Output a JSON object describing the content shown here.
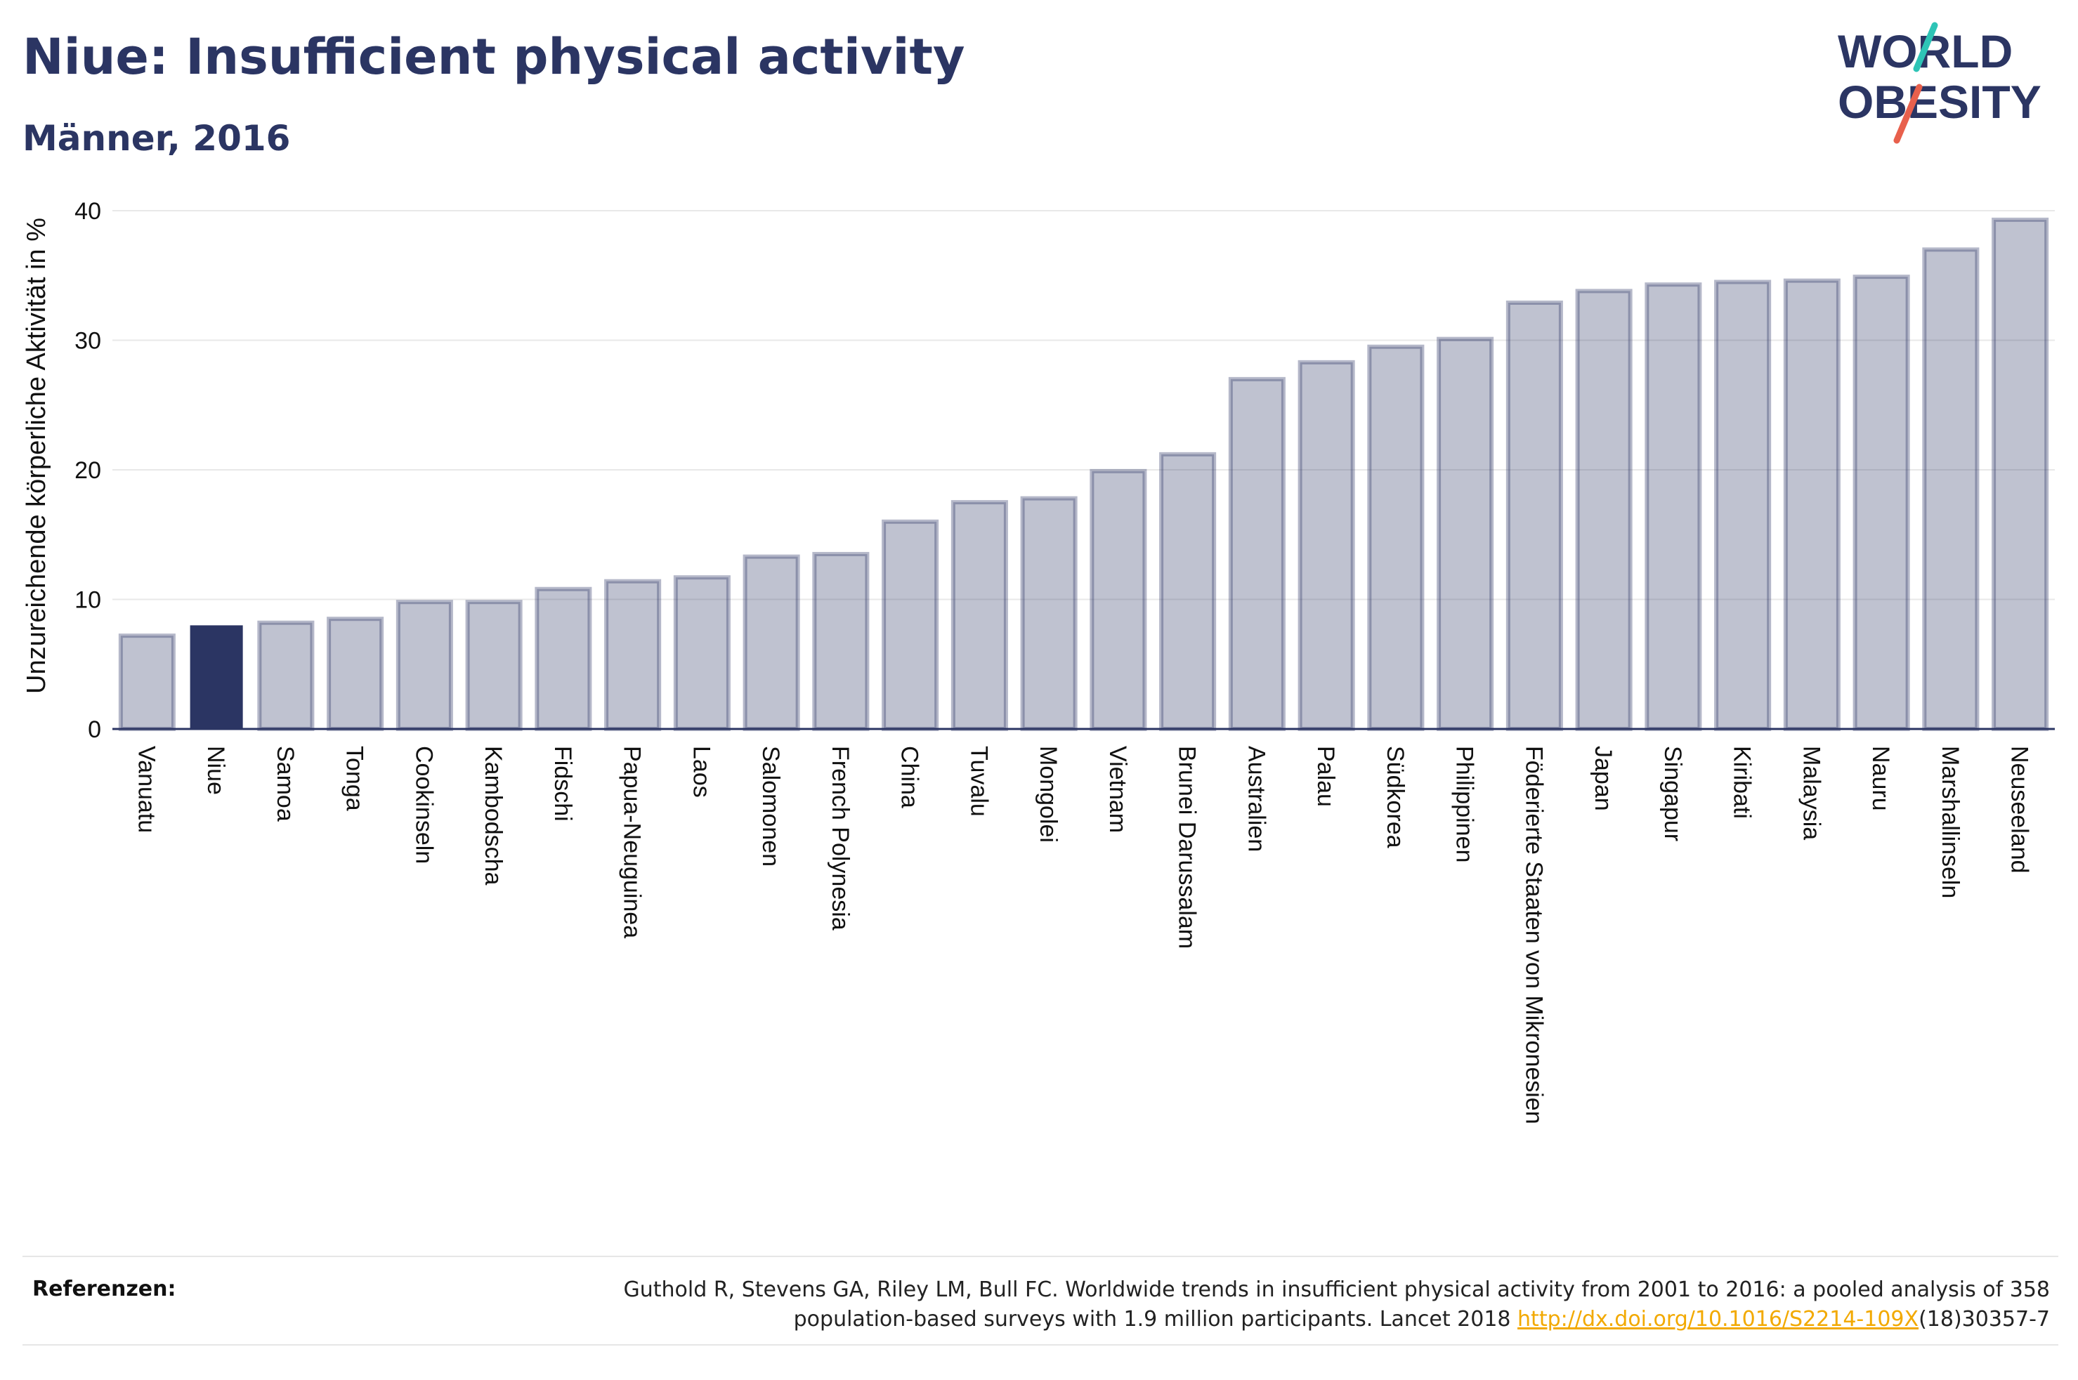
{
  "header": {
    "title": "Niue: Insufficient physical activity",
    "subtitle": "Männer, 2016"
  },
  "logo": {
    "line1": "WORLD",
    "line2": "OBESITY",
    "slash_colors": [
      "#2ec4b6",
      "#e8604c"
    ]
  },
  "chart_data": {
    "type": "bar",
    "title": "Niue: Insufficient physical activity",
    "subtitle": "Männer, 2016",
    "xlabel": "",
    "ylabel": "Unzureichende körperliche Aktivität in %",
    "ylim": [
      0,
      40
    ],
    "yticks": [
      0,
      10,
      20,
      30,
      40
    ],
    "grid": true,
    "highlight": "Niue",
    "colors": {
      "default": "#2b3563",
      "default_opacity": 0.3,
      "highlight": "#2b3563"
    },
    "categories": [
      "Vanuatu",
      "Niue",
      "Samoa",
      "Tonga",
      "Cookinseln",
      "Kambodscha",
      "Fidschi",
      "Papua-Neuguinea",
      "Laos",
      "Salomonen",
      "French Polynesia",
      "China",
      "Tuvalu",
      "Mongolei",
      "Vietnam",
      "Brunei Darussalam",
      "Australien",
      "Palau",
      "Südkorea",
      "Philippinen",
      "Föderierte Staaten von Mikronesien",
      "Japan",
      "Singapur",
      "Kiribati",
      "Malaysia",
      "Nauru",
      "Marshallinseln",
      "Neuseeland"
    ],
    "values": [
      7.2,
      8.0,
      8.2,
      8.5,
      9.8,
      9.8,
      10.8,
      11.4,
      11.7,
      13.3,
      13.5,
      16.0,
      17.5,
      17.8,
      19.9,
      21.2,
      27.0,
      28.3,
      29.5,
      30.1,
      32.9,
      33.8,
      34.3,
      34.5,
      34.6,
      34.9,
      37.0,
      39.3
    ]
  },
  "references": {
    "label": "Referenzen:",
    "text_line1": "Guthold R, Stevens GA, Riley LM, Bull FC. Worldwide trends in insufficient physical activity from 2001 to 2016: a pooled analysis of 358",
    "text_line2_before": "population-based surveys with 1.9 million participants. Lancet 2018 ",
    "link": "http://dx.doi.org/10.1016/S2214-109X",
    "text_line2_after": "(18)30357-7"
  }
}
